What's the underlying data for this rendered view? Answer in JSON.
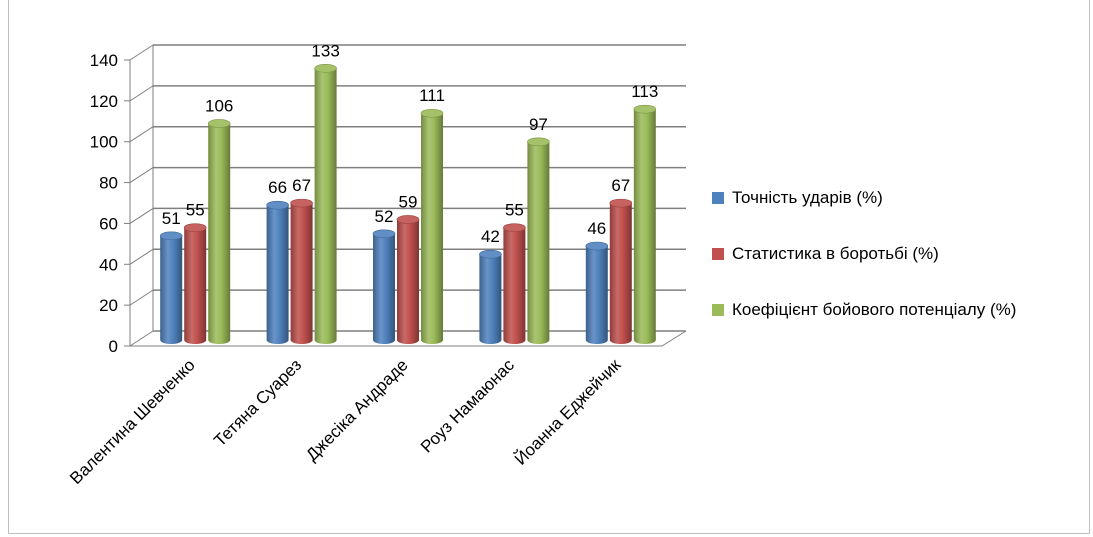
{
  "chart_data": {
    "type": "bar",
    "categories": [
      "Валентина Шевченко",
      "Тетяна Суарез",
      "Джесіка Андраде",
      "Роуз Намаюнас",
      "Йоанна Еджейчик"
    ],
    "series": [
      {
        "name": "Точність ударів (%)",
        "values": [
          51,
          66,
          52,
          42,
          46
        ],
        "color": "#4F81BD"
      },
      {
        "name": "Статистика в боротьбі (%)",
        "values": [
          55,
          67,
          59,
          55,
          67
        ],
        "color": "#C0504D"
      },
      {
        "name": "Коефіцієнт бойового потенціалу (%)",
        "values": [
          106,
          133,
          111,
          97,
          113
        ],
        "color": "#9BBB59"
      }
    ],
    "ylim": [
      0,
      140
    ],
    "yticks": [
      0,
      20,
      40,
      60,
      80,
      100,
      120,
      140
    ],
    "grid": true,
    "legend_position": "right",
    "style": "3d-cylinder"
  }
}
